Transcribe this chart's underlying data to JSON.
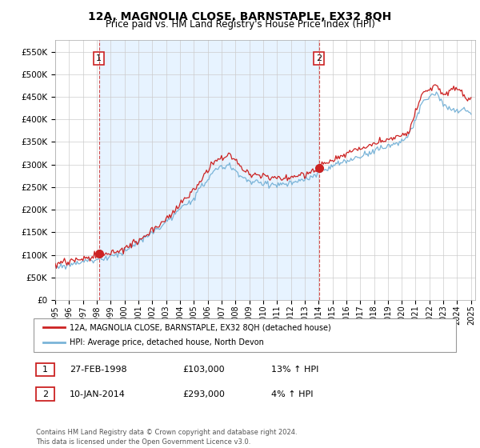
{
  "title": "12A, MAGNOLIA CLOSE, BARNSTAPLE, EX32 8QH",
  "subtitle": "Price paid vs. HM Land Registry's House Price Index (HPI)",
  "yticks": [
    0,
    50000,
    100000,
    150000,
    200000,
    250000,
    300000,
    350000,
    400000,
    450000,
    500000,
    550000
  ],
  "xlim_start": 1995.0,
  "xlim_end": 2025.3,
  "ylim": [
    0,
    575000
  ],
  "hpi_color": "#7ab4d8",
  "price_color": "#cc2222",
  "shade_color": "#ddeeff",
  "marker1_date": 1998.15,
  "marker1_value": 103000,
  "marker2_date": 2014.03,
  "marker2_value": 293000,
  "legend_line1": "12A, MAGNOLIA CLOSE, BARNSTAPLE, EX32 8QH (detached house)",
  "legend_line2": "HPI: Average price, detached house, North Devon",
  "marker1_text": "27-FEB-1998",
  "marker1_price": "£103,000",
  "marker1_hpi": "13% ↑ HPI",
  "marker2_text": "10-JAN-2014",
  "marker2_price": "£293,000",
  "marker2_hpi": "4% ↑ HPI",
  "footnote": "Contains HM Land Registry data © Crown copyright and database right 2024.\nThis data is licensed under the Open Government Licence v3.0.",
  "background_color": "#ffffff",
  "grid_color": "#cccccc",
  "xticks": [
    1995,
    1996,
    1997,
    1998,
    1999,
    2000,
    2001,
    2002,
    2003,
    2004,
    2005,
    2006,
    2007,
    2008,
    2009,
    2010,
    2011,
    2012,
    2013,
    2014,
    2015,
    2016,
    2017,
    2018,
    2019,
    2020,
    2021,
    2022,
    2023,
    2024,
    2025
  ]
}
